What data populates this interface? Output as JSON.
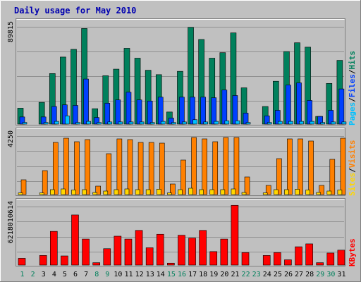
{
  "colors": {
    "background": "#c0c0c0",
    "frame_light": "#ffffff",
    "frame_dark": "#808080",
    "title": "#0000b0",
    "grid": "#808080",
    "hits": "#00805c",
    "files": "#0040ff",
    "pages": "#00c0ff",
    "visits": "#ff8000",
    "sites": "#ffd700",
    "kbytes": "#ff0000",
    "day_weekday": "#000000",
    "day_weekend": "#00805c"
  },
  "chart_data": [
    {
      "type": "bar",
      "title": "Daily usage for May 2010",
      "x": [
        1,
        2,
        3,
        4,
        5,
        6,
        7,
        8,
        9,
        10,
        11,
        12,
        13,
        14,
        15,
        16,
        17,
        18,
        19,
        20,
        21,
        22,
        23,
        24,
        25,
        26,
        27,
        28,
        29,
        30,
        31
      ],
      "weekend_days": [
        1,
        2,
        8,
        9,
        15,
        16,
        22,
        23,
        29,
        30
      ],
      "ymax_label": "89815",
      "ylim": [
        0,
        89815
      ],
      "series": [
        {
          "name": "Hits",
          "values": [
            14500,
            0,
            19800,
            46000,
            61000,
            68000,
            87000,
            14000,
            44000,
            50000,
            69000,
            60000,
            49000,
            45000,
            11000,
            48000,
            88000,
            77000,
            60000,
            65000,
            83000,
            33000,
            0,
            16000,
            39000,
            66000,
            74000,
            70000,
            7000,
            37000,
            58000
          ]
        },
        {
          "name": "Files",
          "values": [
            6500,
            0,
            6500,
            16000,
            17500,
            17000,
            41000,
            6000,
            19000,
            22000,
            29000,
            22000,
            21000,
            24500,
            5500,
            24500,
            24500,
            24500,
            24000,
            31000,
            26000,
            10000,
            0,
            7500,
            12500,
            35500,
            37500,
            21500,
            7000,
            12500,
            32000
          ]
        },
        {
          "name": "Pages",
          "values": [
            1500,
            0,
            1500,
            2500,
            7500,
            1500,
            2500,
            1500,
            2000,
            2000,
            2000,
            2000,
            1500,
            2500,
            1500,
            2000,
            4000,
            2000,
            2500,
            3000,
            3000,
            1500,
            0,
            1500,
            2500,
            2500,
            2500,
            2500,
            1500,
            2000,
            2000
          ]
        }
      ],
      "legend": [
        "Pages",
        "Files",
        "Hits"
      ],
      "legend_position": "right"
    },
    {
      "type": "bar",
      "x": [
        1,
        2,
        3,
        4,
        5,
        6,
        7,
        8,
        9,
        10,
        11,
        12,
        13,
        14,
        15,
        16,
        17,
        18,
        19,
        20,
        21,
        22,
        23,
        24,
        25,
        26,
        27,
        28,
        29,
        30,
        31
      ],
      "ymax_label": "4250",
      "ylim": [
        0,
        4250
      ],
      "series": [
        {
          "name": "Visits",
          "values": [
            1050,
            0,
            1700,
            3700,
            4000,
            3750,
            3900,
            600,
            2900,
            3950,
            3900,
            3700,
            3700,
            3650,
            750,
            2450,
            4050,
            3950,
            3750,
            4050,
            4050,
            1250,
            0,
            650,
            2550,
            3950,
            3950,
            3800,
            650,
            2500,
            4000
          ]
        },
        {
          "name": "Sites",
          "values": [
            120,
            0,
            120,
            350,
            400,
            330,
            350,
            150,
            250,
            350,
            400,
            350,
            350,
            380,
            120,
            350,
            450,
            350,
            350,
            350,
            400,
            150,
            0,
            120,
            350,
            350,
            380,
            330,
            150,
            250,
            330
          ]
        }
      ],
      "legend": [
        "Sites",
        "Visits"
      ],
      "legend_position": "right"
    },
    {
      "type": "bar",
      "x": [
        1,
        2,
        3,
        4,
        5,
        6,
        7,
        8,
        9,
        10,
        11,
        12,
        13,
        14,
        15,
        16,
        17,
        18,
        19,
        20,
        21,
        22,
        23,
        24,
        25,
        26,
        27,
        28,
        29,
        30,
        31
      ],
      "ymax_label": "6218010614",
      "ylim": [
        0,
        6218010614
      ],
      "series": [
        {
          "name": "KBytes",
          "values": [
            700000000,
            0,
            1000000000,
            3500000000,
            950000000,
            5200000000,
            2700000000,
            250000000,
            1700000000,
            3000000000,
            2700000000,
            3600000000,
            1800000000,
            3200000000,
            200000000,
            3100000000,
            2800000000,
            3600000000,
            1400000000,
            2700000000,
            6200000000,
            1300000000,
            0,
            1000000000,
            1300000000,
            550000000,
            1900000000,
            2200000000,
            250000000,
            1250000000,
            1550000000
          ]
        }
      ],
      "legend": [
        "KBytes"
      ],
      "legend_position": "right"
    }
  ]
}
